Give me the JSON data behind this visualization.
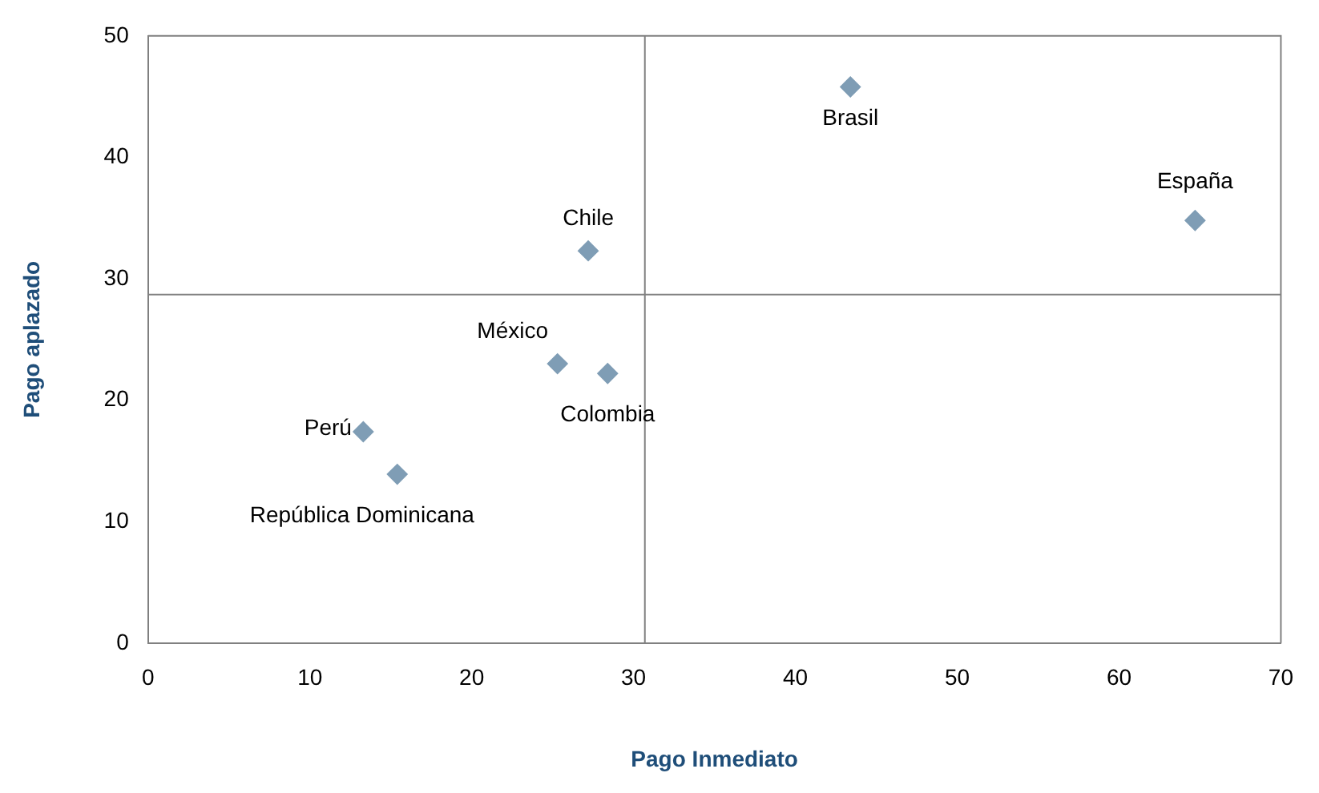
{
  "chart_data": {
    "type": "scatter",
    "xlabel": "Pago Inmediato",
    "ylabel": "Pago aplazado",
    "series": [
      {
        "color": "#7f9db5",
        "x": [
          43.4,
          64.7,
          27.2,
          25.3,
          28.4,
          13.3,
          15.4
        ],
        "values": [
          45.8,
          34.8,
          32.3,
          23.0,
          22.2,
          17.4,
          13.9
        ]
      }
    ],
    "annotations": [
      {
        "text": "Brasil",
        "x": 43.4,
        "y": 45.8
      },
      {
        "text": "España",
        "x": 64.7,
        "y": 34.8
      },
      {
        "text": "Chile",
        "x": 27.2,
        "y": 32.3
      },
      {
        "text": "México",
        "x": 25.3,
        "y": 23.0
      },
      {
        "text": "Colombia",
        "x": 28.4,
        "y": 22.2
      },
      {
        "text": "Perú",
        "x": 13.3,
        "y": 17.4
      },
      {
        "text": "República Dominicana",
        "x": 15.4,
        "y": 13.9
      }
    ],
    "ref_lines": [
      {
        "axis": "x",
        "value": 30.7,
        "color": "#808080"
      },
      {
        "axis": "y",
        "value": 28.7,
        "color": "#808080"
      }
    ],
    "xlim": [
      0,
      70
    ],
    "xticks": [
      0,
      10,
      20,
      30,
      40,
      50,
      60,
      70
    ],
    "ylim": [
      0,
      50
    ],
    "yticks": [
      0,
      10,
      20,
      30,
      40,
      50
    ],
    "marker": "diamond",
    "grid": false,
    "legend": false
  }
}
